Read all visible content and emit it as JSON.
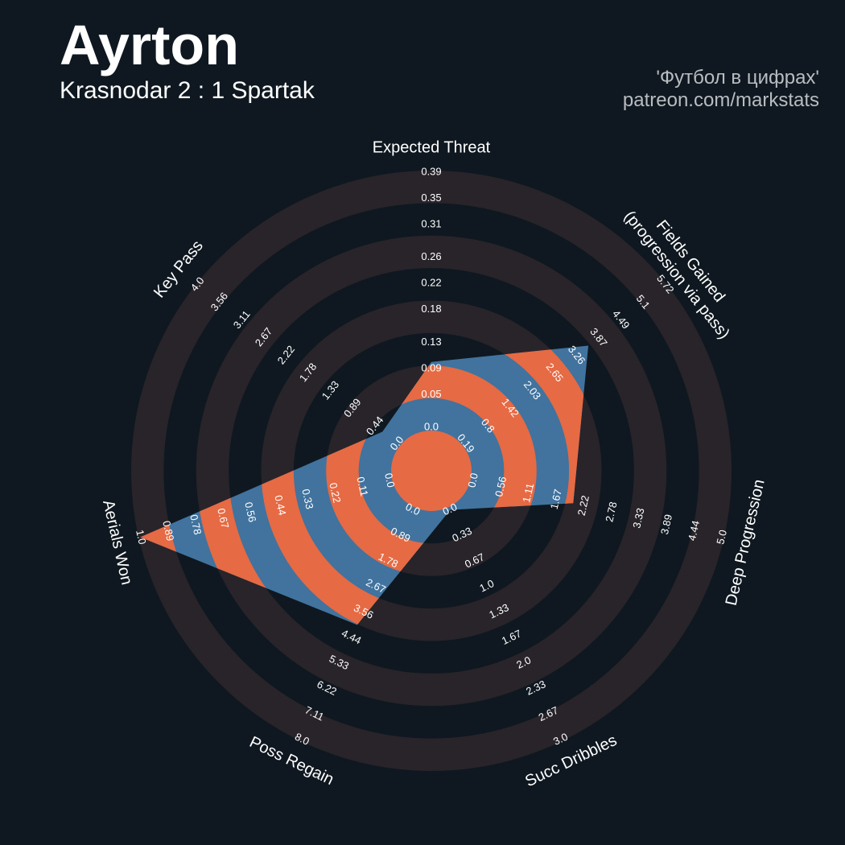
{
  "chart_data": {
    "type": "radar",
    "title": "Ayrton",
    "subtitle": "Krasnodar 2 : 1 Spartak",
    "credits": [
      "'Футбол в цифрах'",
      "patreon.com/markstats"
    ],
    "axes": [
      {
        "name": "Expected Threat",
        "lim": [
          0,
          0.39
        ],
        "ticks": [
          {
            "value": 0,
            "label": "0.0"
          },
          0.05,
          0.09,
          0.13,
          0.18,
          0.22,
          0.26,
          0.31,
          0.35,
          0.39
        ]
      },
      {
        "name": "Fields Gained\n(progression via pass)",
        "lim": [
          0.19,
          5.72
        ],
        "ticks": [
          0.19,
          0.8,
          1.42,
          2.03,
          2.65,
          3.26,
          3.87,
          4.49,
          5.1,
          5.72
        ]
      },
      {
        "name": "Deep Progression",
        "lim": [
          0,
          5
        ],
        "ticks": [
          {
            "value": 0,
            "label": "0.0"
          },
          0.56,
          1.11,
          1.67,
          2.22,
          2.78,
          3.33,
          3.89,
          4.44,
          {
            "value": 5,
            "label": "5.0"
          }
        ]
      },
      {
        "name": "Succ Dribbles",
        "lim": [
          0,
          3
        ],
        "ticks": [
          {
            "value": 0,
            "label": "0.0"
          },
          0.33,
          0.67,
          {
            "value": 1,
            "label": "1.0"
          },
          1.33,
          1.67,
          {
            "value": 2,
            "label": "2.0"
          },
          2.33,
          2.67,
          {
            "value": 3,
            "label": "3.0"
          }
        ]
      },
      {
        "name": "Poss Regain",
        "lim": [
          0,
          8
        ],
        "ticks": [
          {
            "value": 0,
            "label": "0.0"
          },
          0.89,
          1.78,
          2.67,
          3.56,
          4.44,
          5.33,
          6.22,
          7.11,
          {
            "value": 8,
            "label": "8.0"
          }
        ]
      },
      {
        "name": "Aerials Won",
        "lim": [
          0,
          1
        ],
        "ticks": [
          {
            "value": 0,
            "label": "0.0"
          },
          0.11,
          0.22,
          0.33,
          0.44,
          0.56,
          0.67,
          0.78,
          0.89,
          {
            "value": 1,
            "label": "1.0"
          }
        ]
      },
      {
        "name": "Key Pass",
        "lim": [
          0,
          4
        ],
        "ticks": [
          {
            "value": 0,
            "label": "0.0"
          },
          0.44,
          0.89,
          1.33,
          1.78,
          2.22,
          2.67,
          3.11,
          3.56,
          {
            "value": 4,
            "label": "4.0"
          }
        ]
      }
    ],
    "series": [
      {
        "values": [
          0.1,
          3.6,
          2.0,
          0,
          4.0,
          1.0,
          0.3
        ],
        "color": "#41739e",
        "ring_color": "#e66a43"
      }
    ],
    "ring_color": "#28242a",
    "background": "#0f1820"
  }
}
